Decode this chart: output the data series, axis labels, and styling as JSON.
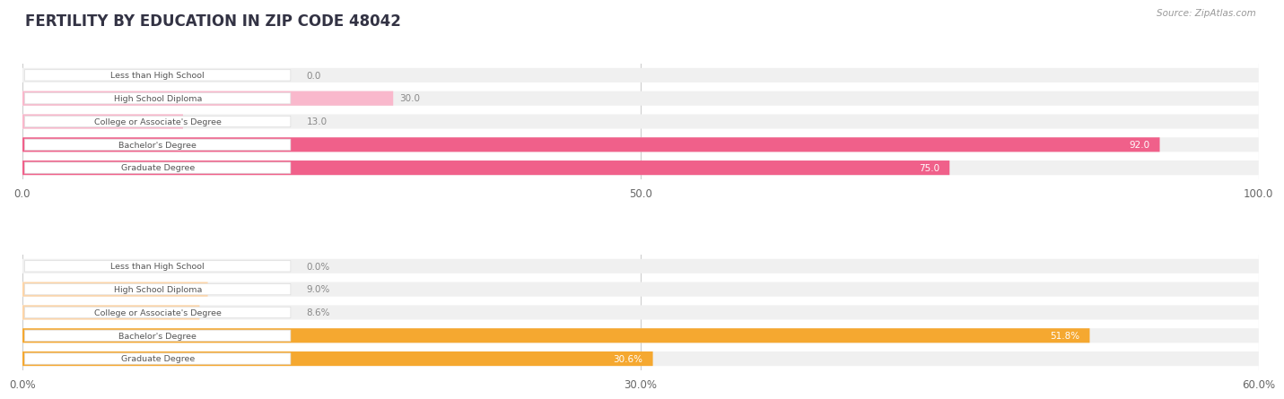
{
  "title": "FERTILITY BY EDUCATION IN ZIP CODE 48042",
  "source": "Source: ZipAtlas.com",
  "top_chart": {
    "categories": [
      "Less than High School",
      "High School Diploma",
      "College or Associate's Degree",
      "Bachelor's Degree",
      "Graduate Degree"
    ],
    "values": [
      0.0,
      30.0,
      13.0,
      92.0,
      75.0
    ],
    "xlim": [
      0,
      100
    ],
    "xticks": [
      0.0,
      50.0,
      100.0
    ],
    "xtick_labels": [
      "0.0",
      "50.0",
      "100.0"
    ],
    "bar_color_low": "#f9b8cc",
    "bar_color_high": "#f0608a",
    "bar_bg_color": "#f0f0f0",
    "value_color_inside": "#ffffff",
    "value_color_outside": "#888888"
  },
  "bottom_chart": {
    "categories": [
      "Less than High School",
      "High School Diploma",
      "College or Associate's Degree",
      "Bachelor's Degree",
      "Graduate Degree"
    ],
    "values": [
      0.0,
      9.0,
      8.6,
      51.8,
      30.6
    ],
    "xlim": [
      0,
      60
    ],
    "xticks": [
      0.0,
      30.0,
      60.0
    ],
    "xtick_labels": [
      "0.0%",
      "30.0%",
      "60.0%"
    ],
    "bar_color_low": "#fdd5a8",
    "bar_color_high": "#f5a830",
    "bar_bg_color": "#f0f0f0",
    "value_color_inside": "#ffffff",
    "value_color_outside": "#888888"
  },
  "background_color": "#ffffff",
  "title_color": "#333344",
  "source_color": "#999999",
  "grid_color": "#cccccc",
  "label_text_color": "#555555",
  "bar_height": 0.62
}
